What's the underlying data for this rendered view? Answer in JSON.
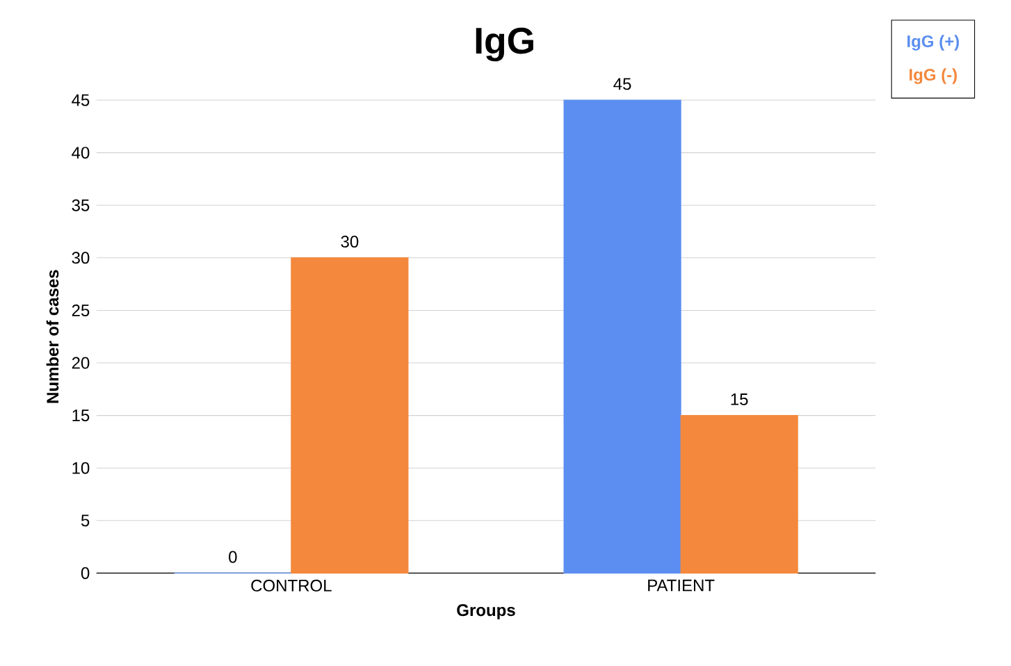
{
  "chart_data": {
    "type": "bar",
    "title": "IgG",
    "xlabel": "Groups",
    "ylabel": "Number of cases",
    "categories": [
      "CONTROL",
      "PATIENT"
    ],
    "series": [
      {
        "name": "IgG (+)",
        "color": "#5b8ef0",
        "values": [
          0,
          45
        ]
      },
      {
        "name": "IgG (-)",
        "color": "#f4883c",
        "values": [
          30,
          15
        ]
      }
    ],
    "ylim": [
      0,
      45
    ],
    "yticks": [
      0,
      5,
      10,
      15,
      20,
      25,
      30,
      35,
      40,
      45
    ],
    "grid": "y",
    "legend": "top right",
    "data_labels": true
  }
}
